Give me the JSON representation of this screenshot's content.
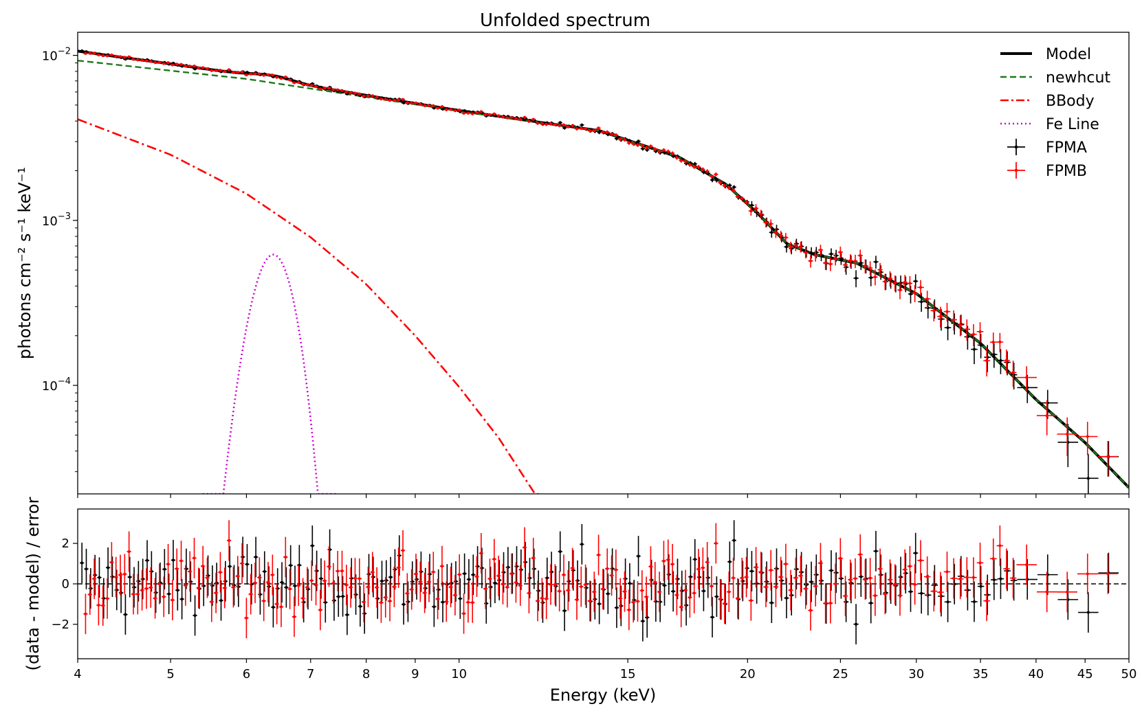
{
  "chart_data": [
    {
      "type": "line",
      "title": "Unfolded spectrum",
      "xlabel": "Energy (keV)",
      "ylabel": "photons cm⁻² s⁻¹ keV⁻¹",
      "xscale": "log",
      "yscale": "log",
      "xlim": [
        4,
        50
      ],
      "ylim": [
        2.2e-05,
        0.0138
      ],
      "y_ticks": [
        {
          "value": 0.01,
          "base": "10",
          "exp": "−2"
        },
        {
          "value": 0.001,
          "base": "10",
          "exp": "−3"
        },
        {
          "value": 0.0001,
          "base": "10",
          "exp": "−4"
        }
      ],
      "x_ticks": [
        4,
        5,
        6,
        7,
        8,
        9,
        10,
        15,
        20,
        25,
        30,
        35,
        40,
        45,
        50
      ],
      "legend": [
        {
          "label": "Model",
          "color": "#000000",
          "style": "solid"
        },
        {
          "label": "newhcut",
          "color": "#1a7a1a",
          "style": "dashed"
        },
        {
          "label": "BBody",
          "color": "#ff0000",
          "style": "dashdot"
        },
        {
          "label": "Fe Line",
          "color": "#cc00cc",
          "style": "dotted"
        },
        {
          "label": "FPMA",
          "color": "#000000",
          "style": "errorbar"
        },
        {
          "label": "FPMB",
          "color": "#ff0000",
          "style": "errorbar"
        }
      ],
      "model": {
        "cont_anchors": [
          [
            4,
            0.0093
          ],
          [
            6,
            0.0072
          ],
          [
            10,
            0.0046
          ],
          [
            14,
            0.0035
          ],
          [
            17,
            0.0024
          ],
          [
            19,
            0.00165
          ],
          [
            20.5,
            0.0011
          ],
          [
            22,
            0.00072
          ],
          [
            23.5,
            0.00062
          ],
          [
            26,
            0.00055
          ],
          [
            30,
            0.00036
          ],
          [
            35,
            0.00018
          ],
          [
            40,
            8.2e-05
          ],
          [
            45,
            4.5e-05
          ],
          [
            50,
            2.4e-05
          ]
        ],
        "bbody_anchors": [
          [
            4,
            0.0041
          ],
          [
            5,
            0.0025
          ],
          [
            6,
            0.00145
          ],
          [
            7,
            0.00079
          ],
          [
            8,
            0.00041
          ],
          [
            9,
            0.0002
          ],
          [
            10,
            9.8e-05
          ],
          [
            11,
            4.8e-05
          ],
          [
            12,
            2.2e-05
          ]
        ],
        "fe_line": {
          "center": 6.4,
          "peak": 0.00062,
          "sigma": 0.28,
          "cutoff": 2.2e-05
        }
      }
    },
    {
      "type": "scatter",
      "xlabel": "Energy (keV)",
      "ylabel": "(data - model) / error",
      "xscale": "log",
      "xlim": [
        4,
        50
      ],
      "ylim": [
        -3.7,
        3.7
      ],
      "y_ticks": [
        {
          "value": 2,
          "label": "2"
        },
        {
          "value": 0,
          "label": "0"
        },
        {
          "value": -2,
          "label": "−2"
        }
      ],
      "zero_line": true,
      "series": [
        {
          "name": "FPMA",
          "color": "#000000"
        },
        {
          "name": "FPMB",
          "color": "#ff0000"
        }
      ]
    }
  ]
}
